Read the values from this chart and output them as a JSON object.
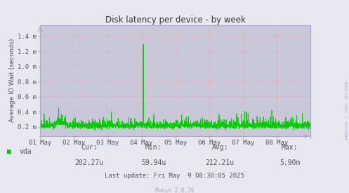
{
  "title": "Disk latency per device - by week",
  "ylabel": "Average IO Wait (seconds)",
  "bg_color": "#e8e8f0",
  "plot_bg_color": "#c8c8d8",
  "grid_color": "#ff8888",
  "line_color": "#00cc00",
  "axis_color": "#aaaacc",
  "text_color": "#555566",
  "title_color": "#333344",
  "x_labels": [
    "01 May",
    "02 May",
    "03 May",
    "04 May",
    "05 May",
    "06 May",
    "07 May",
    "08 May"
  ],
  "y_labels": [
    "0.2 m",
    "0.4 m",
    "0.6 m",
    "0.8 m",
    "1.0 m",
    "1.2 m",
    "1.4 m"
  ],
  "y_values": [
    0.0002,
    0.0004,
    0.0006,
    0.0008,
    0.001,
    0.0012,
    0.0014
  ],
  "ylim": [
    8e-05,
    0.00155
  ],
  "xlim": [
    0,
    8
  ],
  "legend_label": "vda",
  "legend_color": "#00cc00",
  "stats_cur_label": "Cur:",
  "stats_cur_val": "202.27u",
  "stats_min_label": "Min:",
  "stats_min_val": "59.94u",
  "stats_avg_label": "Avg:",
  "stats_avg_val": "212.21u",
  "stats_max_label": "Max:",
  "stats_max_val": "5.90m",
  "footer_last": "Last update: Fri May  9 08:30:05 2025",
  "footer_munin": "Munin 2.0.76",
  "right_label": "RRDTOOL / TOBI OETIKER"
}
